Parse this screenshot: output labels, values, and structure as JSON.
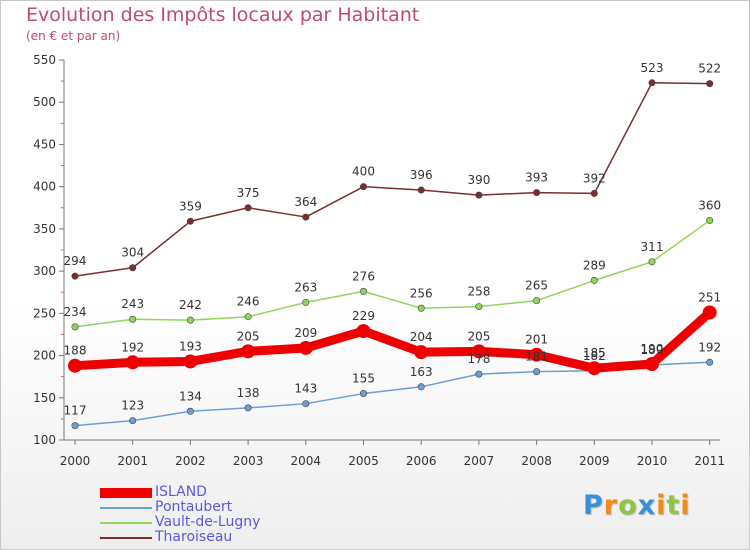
{
  "chart_data": {
    "type": "line",
    "title": "Evolution des Impôts locaux par Habitant",
    "subtitle": "(en € et par an)",
    "x": [
      "2000",
      "2001",
      "2002",
      "2003",
      "2004",
      "2005",
      "2006",
      "2007",
      "2008",
      "2009",
      "2010",
      "2011"
    ],
    "ylim": [
      100,
      550
    ],
    "yticks": [
      "100",
      "150",
      "200",
      "250",
      "300",
      "350",
      "400",
      "450",
      "500",
      "550"
    ],
    "grid": false,
    "legend_position": "bottom-left",
    "series": [
      {
        "name": "ISLAND",
        "color": "#ee0000",
        "values": [
          188,
          192,
          193,
          205,
          209,
          229,
          204,
          205,
          201,
          185,
          190,
          251
        ],
        "labels": [
          "188",
          "192",
          "193",
          "205",
          "209",
          "229",
          "204",
          "205",
          "201",
          "185",
          "190",
          "251"
        ]
      },
      {
        "name": "Pontaubert",
        "color": "#6a9fd6",
        "values": [
          117,
          123,
          134,
          138,
          143,
          155,
          163,
          178,
          181,
          182,
          189,
          192
        ],
        "labels": [
          "117",
          "123",
          "134",
          "138",
          "143",
          "155",
          "163",
          "178",
          "181",
          "182",
          "189",
          "192"
        ]
      },
      {
        "name": "Vault-de-Lugny",
        "color": "#8fd65a",
        "values": [
          234,
          243,
          242,
          246,
          263,
          276,
          256,
          258,
          265,
          289,
          311,
          360
        ],
        "labels": [
          "234",
          "243",
          "242",
          "246",
          "263",
          "276",
          "256",
          "258",
          "265",
          "289",
          "311",
          "360"
        ]
      },
      {
        "name": "Tharoiseau",
        "color": "#7a2e2e",
        "values": [
          294,
          304,
          359,
          375,
          364,
          400,
          396,
          390,
          393,
          392,
          523,
          522
        ],
        "labels": [
          "294",
          "304",
          "359",
          "375",
          "364",
          "400",
          "396",
          "390",
          "393",
          "392",
          "523",
          "522"
        ]
      }
    ]
  },
  "logo": {
    "text": "Proxiti",
    "letters": [
      {
        "ch": "P",
        "color": "#3a8fd9"
      },
      {
        "ch": "r",
        "color": "#f08a1c"
      },
      {
        "ch": "o",
        "color": "#8cc63f"
      },
      {
        "ch": "x",
        "color": "#3a8fd9"
      },
      {
        "ch": "i",
        "color": "#f08a1c"
      },
      {
        "ch": "t",
        "color": "#8cc63f"
      },
      {
        "ch": "i",
        "color": "#f08a1c"
      }
    ]
  }
}
